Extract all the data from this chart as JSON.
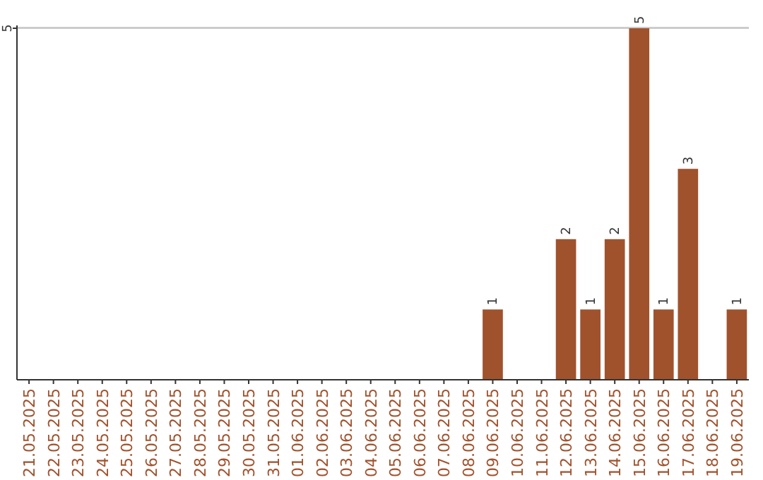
{
  "chart_data": {
    "type": "bar",
    "categories": [
      "21.05.2025",
      "22.05.2025",
      "23.05.2025",
      "24.05.2025",
      "25.05.2025",
      "26.05.2025",
      "27.05.2025",
      "28.05.2025",
      "29.05.2025",
      "30.05.2025",
      "31.05.2025",
      "01.06.2025",
      "02.06.2025",
      "03.06.2025",
      "04.06.2025",
      "05.06.2025",
      "06.06.2025",
      "07.06.2025",
      "08.06.2025",
      "09.06.2025",
      "10.06.2025",
      "11.06.2025",
      "12.06.2025",
      "13.06.2025",
      "14.06.2025",
      "15.06.2025",
      "16.06.2025",
      "17.06.2025",
      "18.06.2025",
      "19.06.2025"
    ],
    "values": [
      null,
      null,
      null,
      null,
      null,
      null,
      null,
      null,
      null,
      null,
      null,
      null,
      null,
      null,
      null,
      null,
      null,
      null,
      null,
      1,
      null,
      null,
      2,
      1,
      2,
      5,
      1,
      3,
      null,
      1
    ],
    "color": "#a0522d",
    "ylim": [
      0,
      5
    ],
    "yticks": [
      5
    ],
    "grid": "y",
    "data_labels": true
  }
}
